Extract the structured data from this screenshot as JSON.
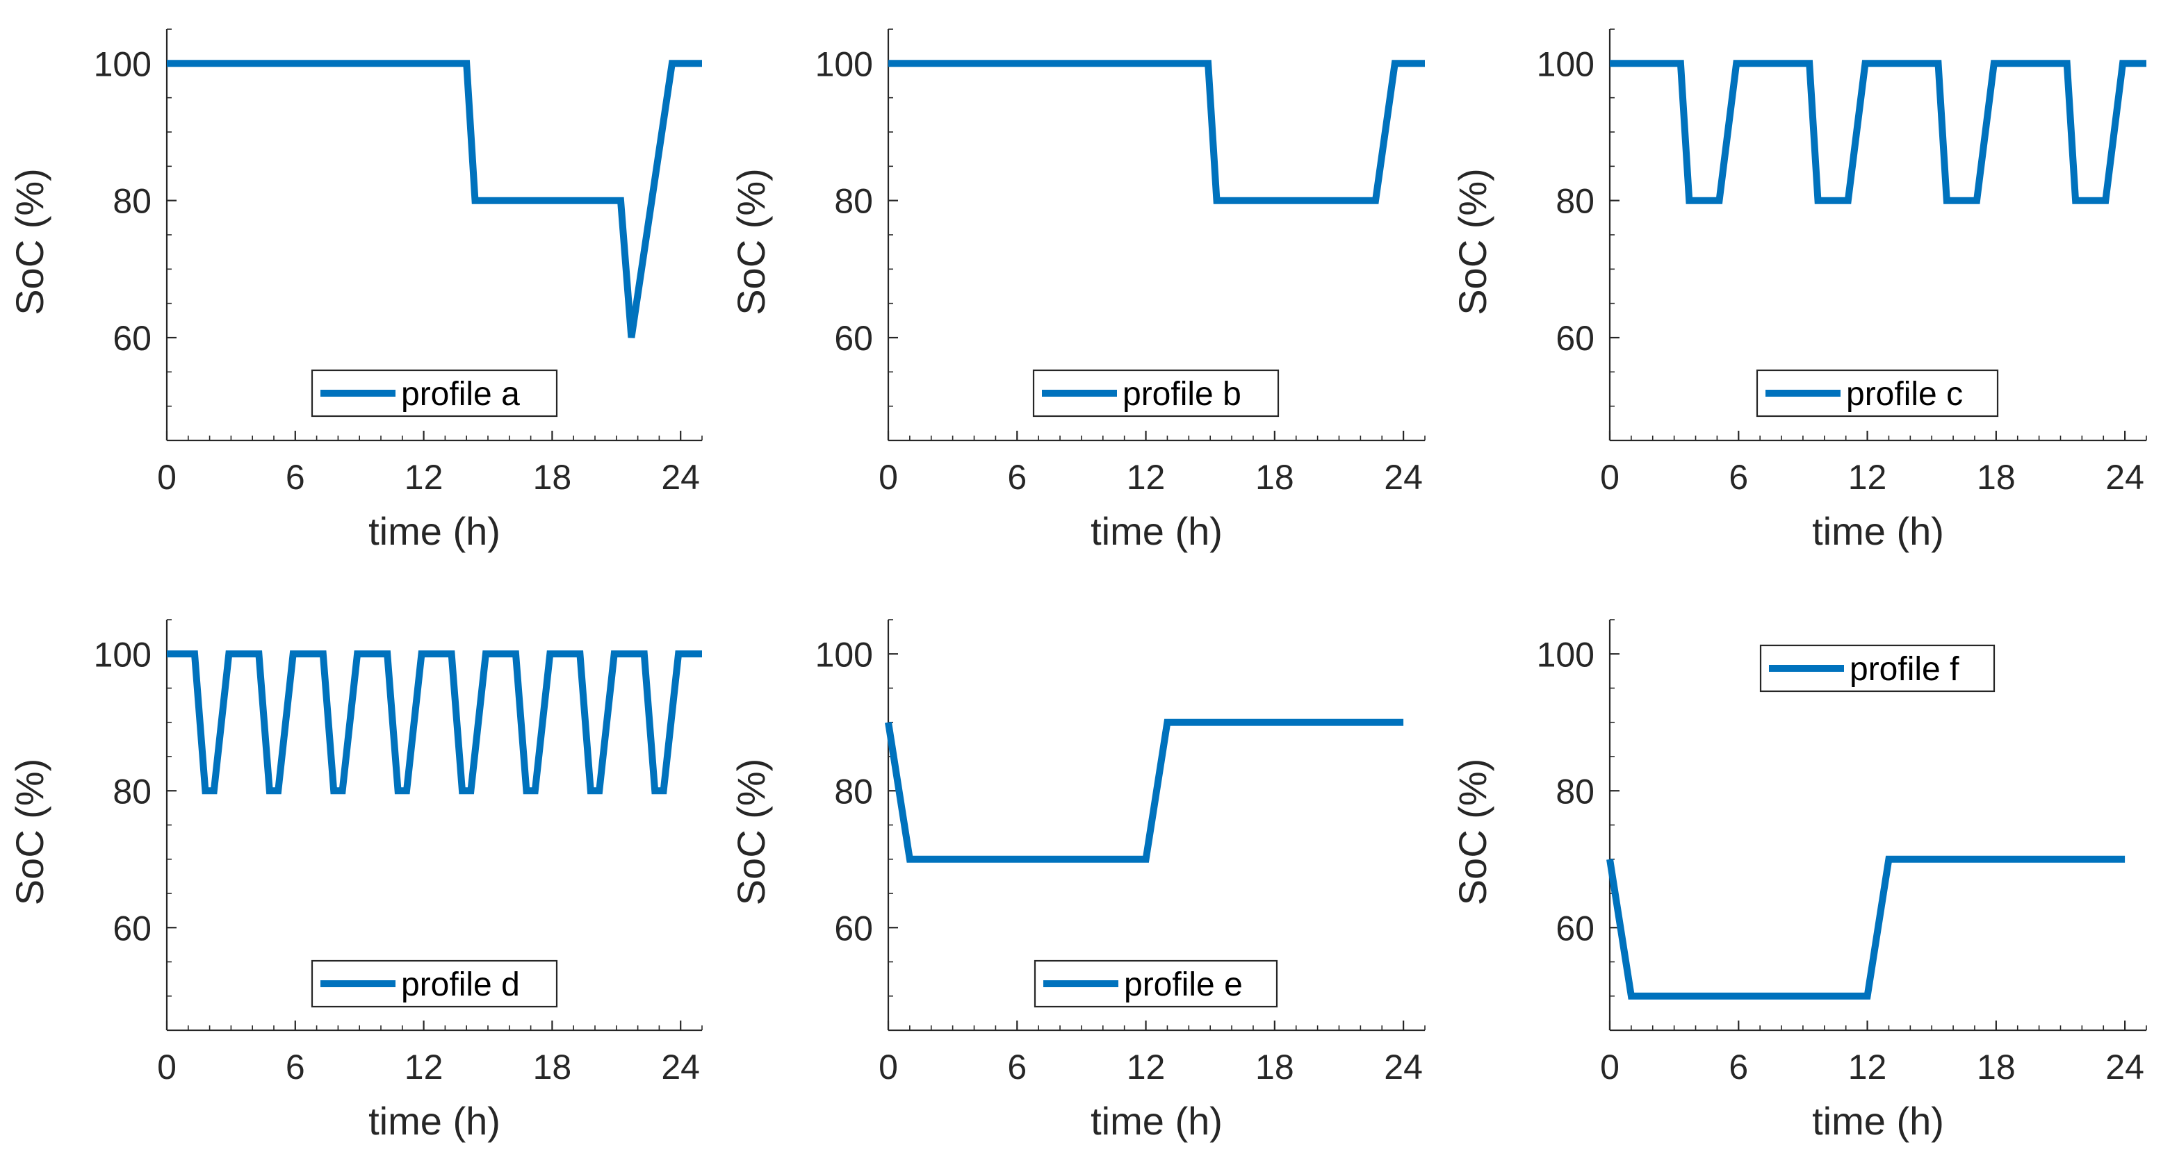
{
  "chart_data": [
    {
      "type": "line",
      "xlabel": "time (h)",
      "ylabel": "SoC (%)",
      "xlim": [
        0,
        25
      ],
      "ylim": [
        45,
        105
      ],
      "xticks": [
        0,
        6,
        12,
        18,
        24
      ],
      "yticks": [
        60,
        80,
        100
      ],
      "legend_placement": "bottom-center",
      "series": [
        {
          "name": "profile a",
          "color": "#0072BD",
          "x": [
            0,
            14,
            14.4,
            21.2,
            21.7,
            23.6,
            25
          ],
          "y": [
            100,
            100,
            80,
            80,
            60,
            100,
            100
          ]
        }
      ]
    },
    {
      "type": "line",
      "xlabel": "time (h)",
      "ylabel": "SoC (%)",
      "xlim": [
        0,
        25
      ],
      "ylim": [
        45,
        105
      ],
      "xticks": [
        0,
        6,
        12,
        18,
        24
      ],
      "yticks": [
        60,
        80,
        100
      ],
      "legend_placement": "bottom-center",
      "series": [
        {
          "name": "profile b",
          "color": "#0072BD",
          "x": [
            0,
            14.9,
            15.3,
            22.7,
            23.6,
            25
          ],
          "y": [
            100,
            100,
            80,
            80,
            100,
            100
          ]
        }
      ]
    },
    {
      "type": "line",
      "xlabel": "time (h)",
      "ylabel": "SoC (%)",
      "xlim": [
        0,
        25
      ],
      "ylim": [
        45,
        105
      ],
      "xticks": [
        0,
        6,
        12,
        18,
        24
      ],
      "yticks": [
        60,
        80,
        100
      ],
      "legend_placement": "bottom-center",
      "series": [
        {
          "name": "profile c",
          "color": "#0072BD",
          "x": [
            0,
            3.3,
            3.7,
            5.1,
            5.9,
            9.3,
            9.7,
            11.1,
            11.9,
            15.3,
            15.7,
            17.1,
            17.9,
            21.3,
            21.7,
            23.1,
            23.9,
            25
          ],
          "y": [
            100,
            100,
            80,
            80,
            100,
            100,
            80,
            80,
            100,
            100,
            80,
            80,
            100,
            100,
            80,
            80,
            100,
            100
          ]
        }
      ]
    },
    {
      "type": "line",
      "xlabel": "time (h)",
      "ylabel": "SoC (%)",
      "xlim": [
        0,
        25
      ],
      "ylim": [
        45,
        105
      ],
      "xticks": [
        0,
        6,
        12,
        18,
        24
      ],
      "yticks": [
        60,
        80,
        100
      ],
      "legend_placement": "bottom-center",
      "series": [
        {
          "name": "profile d",
          "color": "#0072BD",
          "x": [
            0,
            1.3,
            1.8,
            2.2,
            2.9,
            4.3,
            4.8,
            5.2,
            5.9,
            7.3,
            7.8,
            8.2,
            8.9,
            10.3,
            10.8,
            11.2,
            11.9,
            13.3,
            13.8,
            14.2,
            14.9,
            16.3,
            16.8,
            17.2,
            17.9,
            19.3,
            19.8,
            20.2,
            20.9,
            22.3,
            22.8,
            23.2,
            23.9,
            25
          ],
          "y": [
            100,
            100,
            80,
            80,
            100,
            100,
            80,
            80,
            100,
            100,
            80,
            80,
            100,
            100,
            80,
            80,
            100,
            100,
            80,
            80,
            100,
            100,
            80,
            80,
            100,
            100,
            80,
            80,
            100,
            100,
            80,
            80,
            100,
            100
          ]
        }
      ]
    },
    {
      "type": "line",
      "xlabel": "time (h)",
      "ylabel": "SoC (%)",
      "xlim": [
        0,
        25
      ],
      "ylim": [
        45,
        105
      ],
      "xticks": [
        0,
        6,
        12,
        18,
        24
      ],
      "yticks": [
        60,
        80,
        100
      ],
      "legend_placement": "bottom-center",
      "series": [
        {
          "name": "profile e",
          "color": "#0072BD",
          "x": [
            0,
            1,
            12,
            13,
            24
          ],
          "y": [
            90,
            70,
            70,
            90,
            90
          ]
        }
      ]
    },
    {
      "type": "line",
      "xlabel": "time (h)",
      "ylabel": "SoC (%)",
      "xlim": [
        0,
        25
      ],
      "ylim": [
        45,
        105
      ],
      "xticks": [
        0,
        6,
        12,
        18,
        24
      ],
      "yticks": [
        60,
        80,
        100
      ],
      "legend_placement": "top-center",
      "series": [
        {
          "name": "profile f",
          "color": "#0072BD",
          "x": [
            0,
            1,
            12,
            13,
            24
          ],
          "y": [
            70,
            50,
            50,
            70,
            70
          ]
        }
      ]
    }
  ]
}
